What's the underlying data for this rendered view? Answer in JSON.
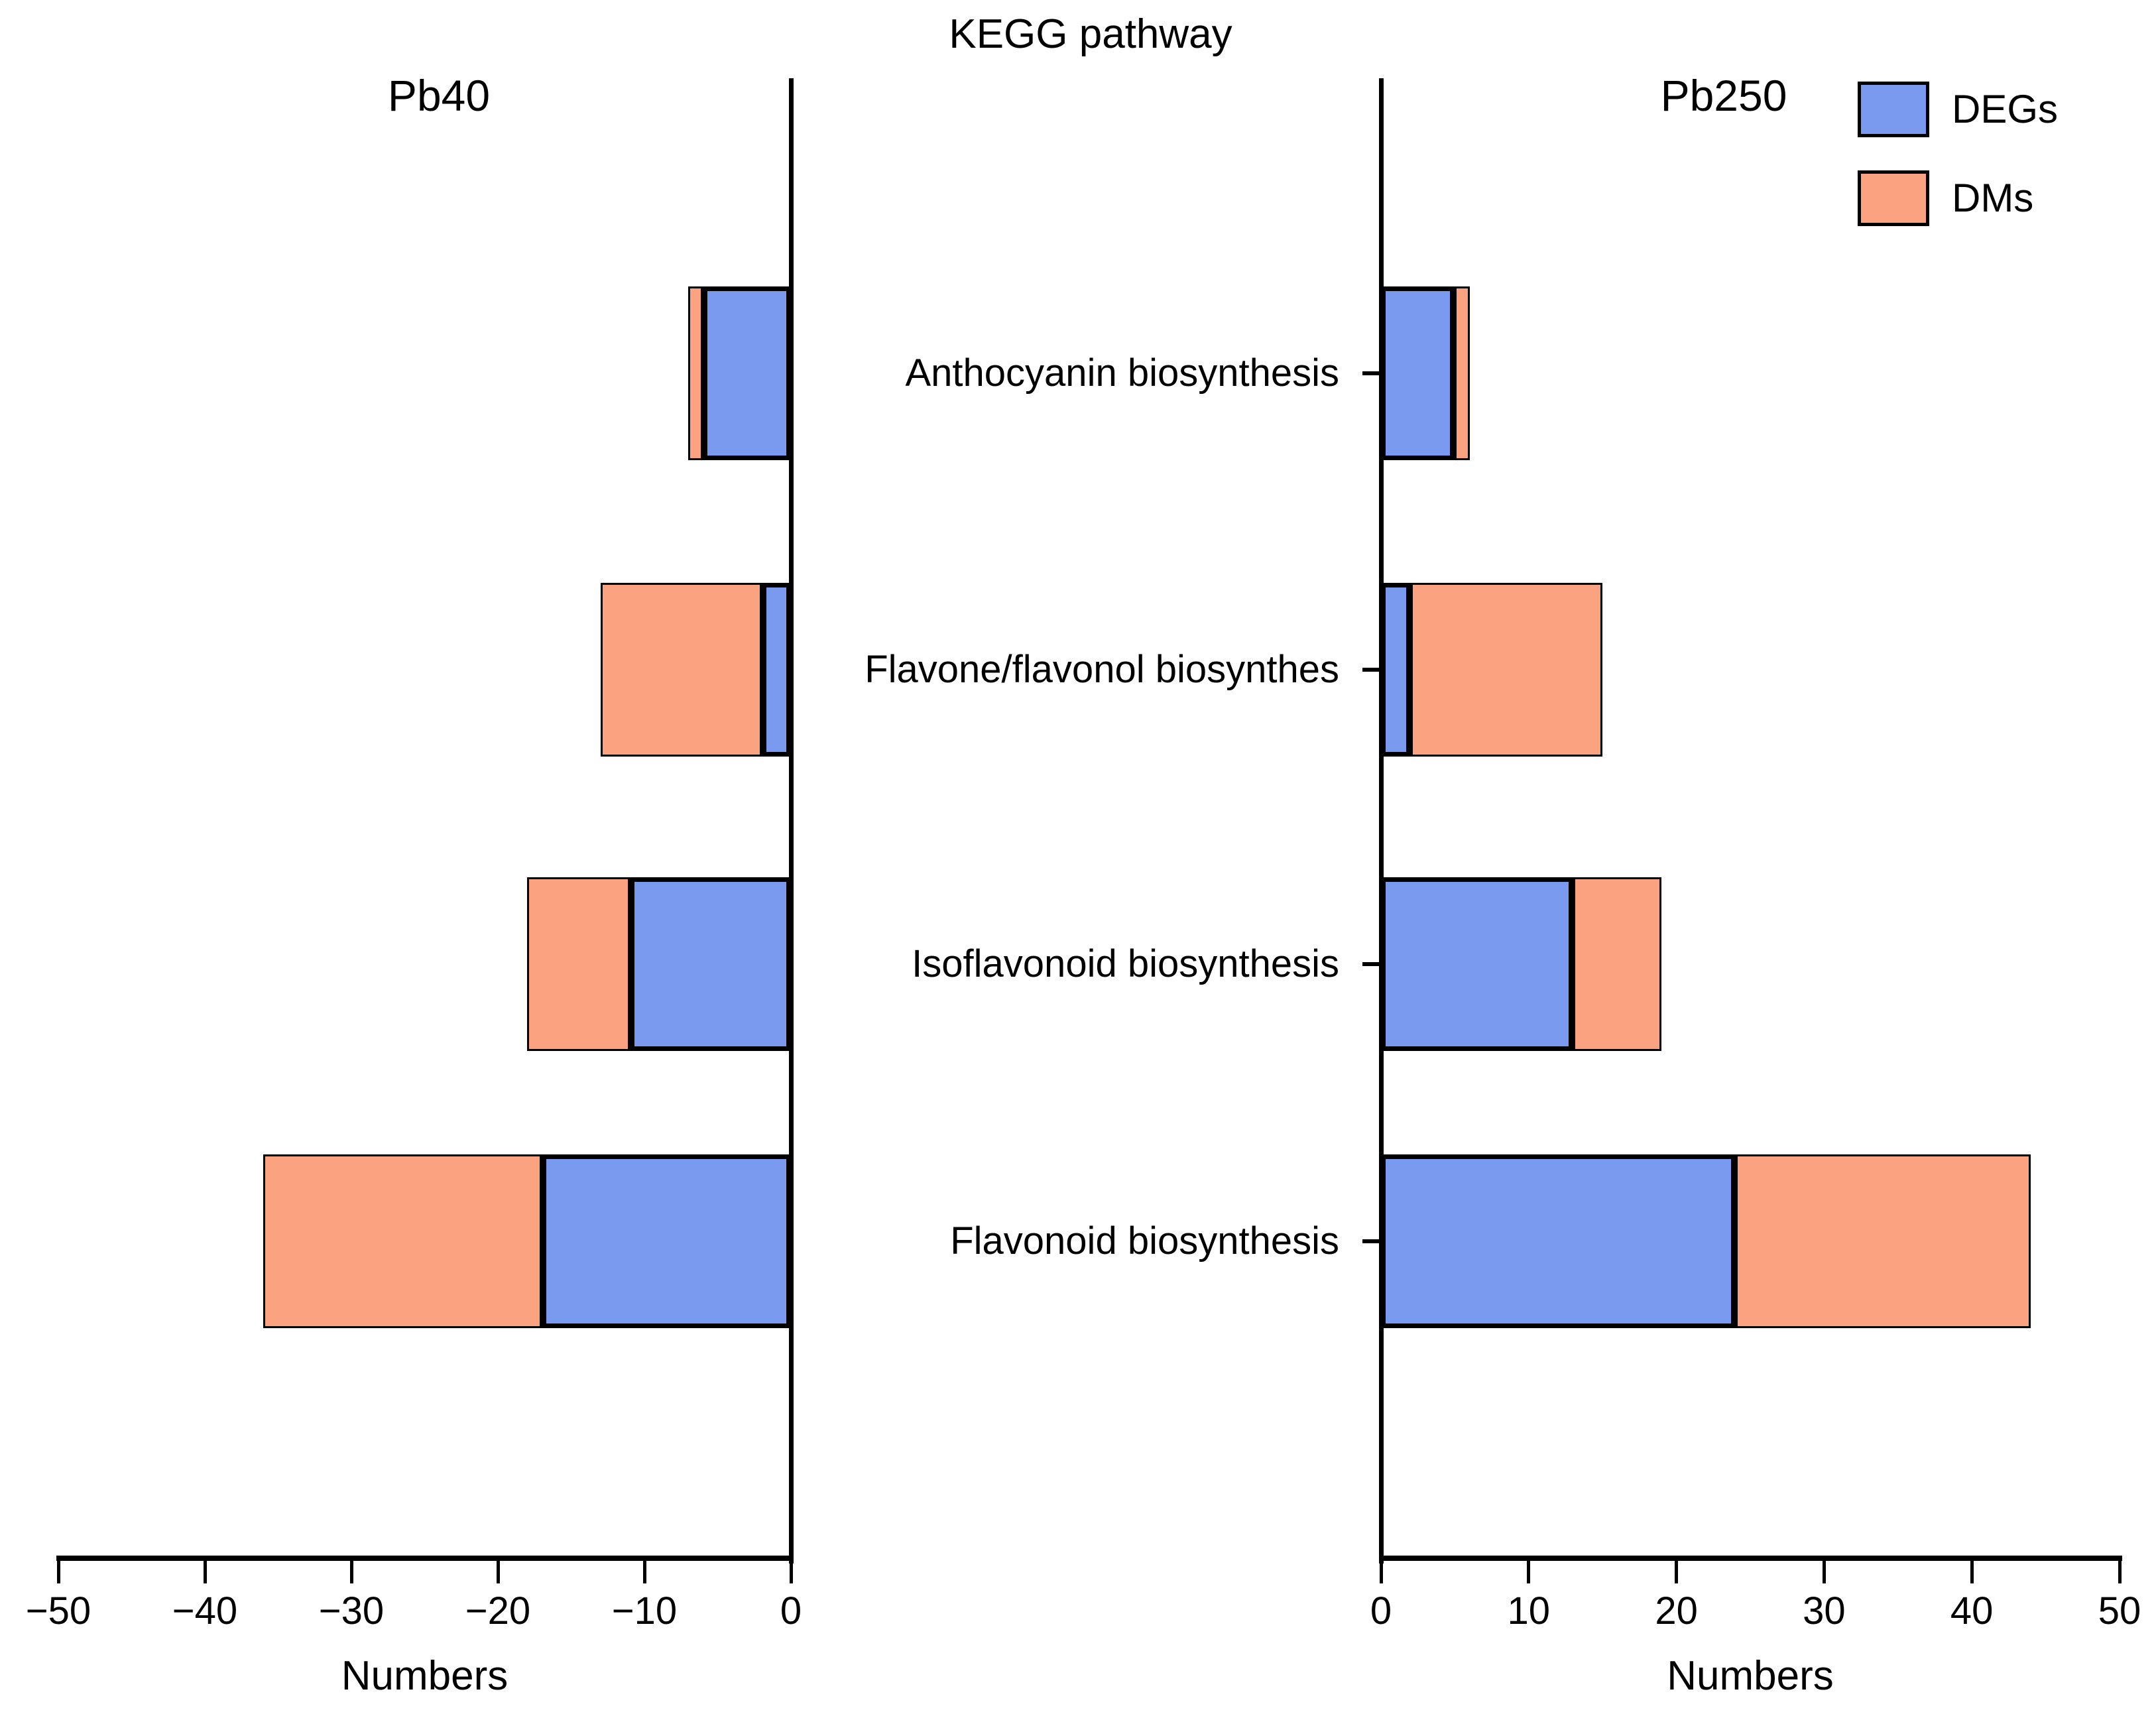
{
  "title": "KEGG pathway",
  "panels": [
    {
      "label": "Pb40",
      "axis_title": "Numbers",
      "ticks": [
        "−50",
        "−40",
        "−30",
        "−20",
        "−10",
        "0"
      ]
    },
    {
      "label": "Pb250",
      "axis_title": "Numbers",
      "ticks": [
        "0",
        "10",
        "20",
        "30",
        "40",
        "50"
      ]
    }
  ],
  "legend": [
    {
      "label": "DEGs",
      "color": "#7a9af0"
    },
    {
      "label": "DMs",
      "color": "#fba381"
    }
  ],
  "chart_data": {
    "type": "bar",
    "orientation": "horizontal",
    "stacked": true,
    "title": "KEGG pathway",
    "grid": false,
    "legend_position": "top-right",
    "categories": [
      "Anthocyanin biosynthesis",
      "Flavone/flavonol biosynthes",
      "Isoflavonoid biosynthesis",
      "Flavonoid biosynthesis"
    ],
    "colors": {
      "DEGs": "#7a9af0",
      "DMs": "#fba381"
    },
    "panels": [
      {
        "name": "Pb40",
        "xlabel": "Numbers",
        "xlim": [
          -50,
          0
        ],
        "direction": "negative",
        "series": [
          {
            "name": "DEGs",
            "values": [
              -6,
              -2,
              -11,
              -17
            ]
          },
          {
            "name": "DMs",
            "values": [
              -1,
              -11,
              -7,
              -19
            ]
          }
        ]
      },
      {
        "name": "Pb250",
        "xlabel": "Numbers",
        "xlim": [
          0,
          50
        ],
        "direction": "positive",
        "series": [
          {
            "name": "DEGs",
            "values": [
              5,
              2,
              13,
              24
            ]
          },
          {
            "name": "DMs",
            "values": [
              1,
              13,
              6,
              20
            ]
          }
        ]
      }
    ]
  }
}
